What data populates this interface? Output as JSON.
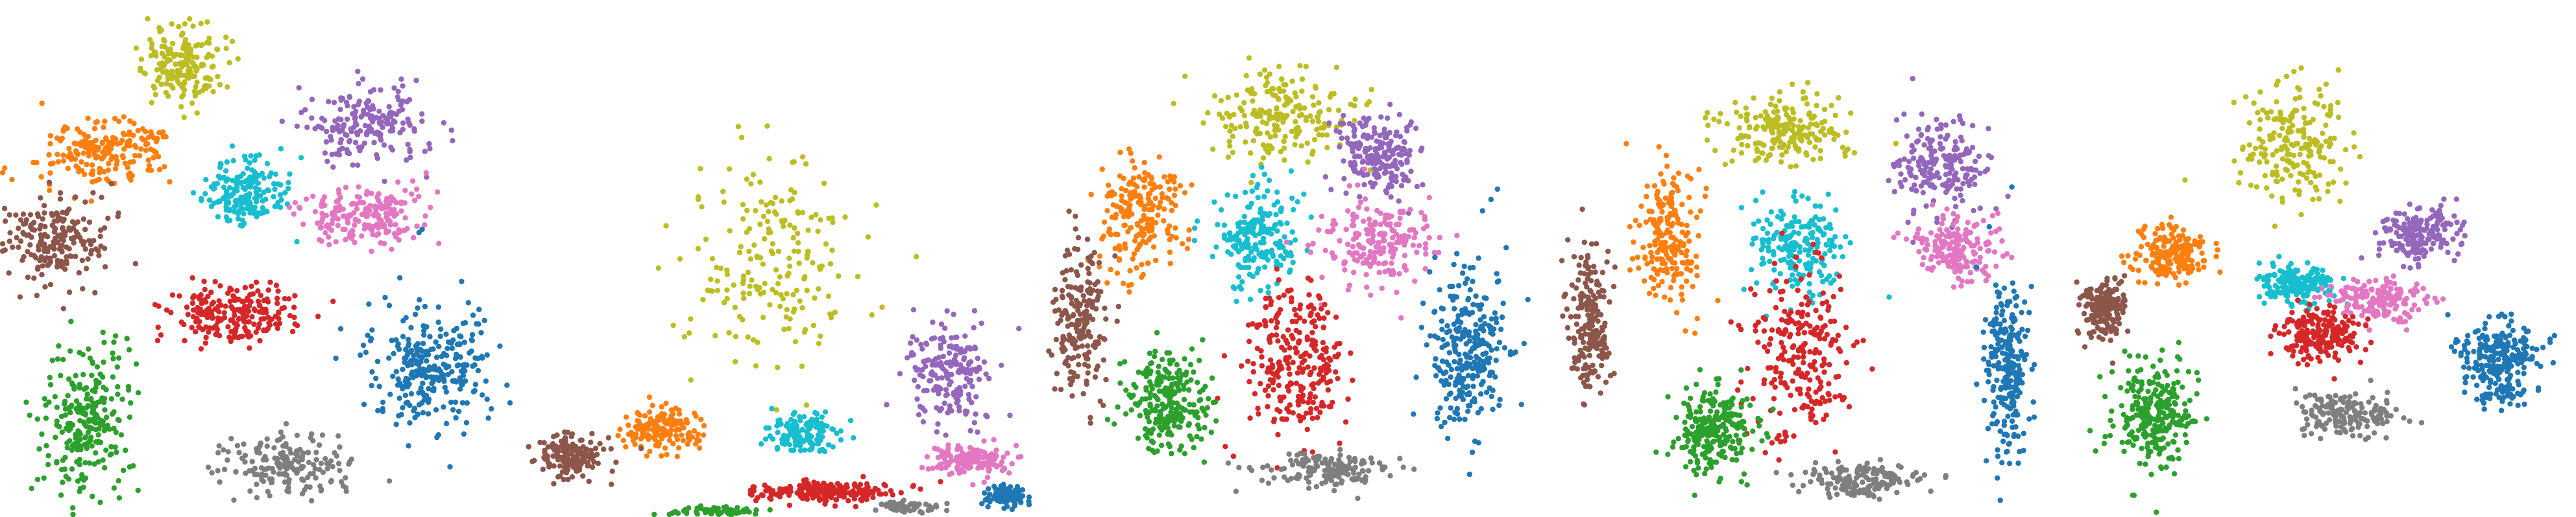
{
  "chart_data": [
    {
      "type": "scatter",
      "description_kind": "cluster embedding",
      "clusters": [
        {
          "color": "#bcbd22",
          "cx": 0.36,
          "cy": 0.12,
          "sx": 0.08,
          "sy": 0.08,
          "n": 180
        },
        {
          "color": "#ff7f0e",
          "cx": 0.2,
          "cy": 0.29,
          "sx": 0.12,
          "sy": 0.06,
          "n": 200
        },
        {
          "color": "#17becf",
          "cx": 0.48,
          "cy": 0.37,
          "sx": 0.08,
          "sy": 0.07,
          "n": 180
        },
        {
          "color": "#9467bd",
          "cx": 0.71,
          "cy": 0.24,
          "sx": 0.11,
          "sy": 0.07,
          "n": 200
        },
        {
          "color": "#e377c2",
          "cx": 0.72,
          "cy": 0.42,
          "sx": 0.11,
          "sy": 0.06,
          "n": 200
        },
        {
          "color": "#8c564b",
          "cx": 0.11,
          "cy": 0.47,
          "sx": 0.1,
          "sy": 0.09,
          "n": 200
        },
        {
          "color": "#d62728",
          "cx": 0.45,
          "cy": 0.61,
          "sx": 0.12,
          "sy": 0.06,
          "n": 220
        },
        {
          "color": "#1f77b4",
          "cx": 0.84,
          "cy": 0.71,
          "sx": 0.12,
          "sy": 0.13,
          "n": 280
        },
        {
          "color": "#2ca02c",
          "cx": 0.17,
          "cy": 0.82,
          "sx": 0.08,
          "sy": 0.14,
          "n": 250
        },
        {
          "color": "#7f7f7f",
          "cx": 0.56,
          "cy": 0.9,
          "sx": 0.12,
          "sy": 0.06,
          "n": 180
        }
      ]
    },
    {
      "type": "scatter",
      "description_kind": "cluster embedding",
      "clusters": [
        {
          "color": "#bcbd22",
          "cx": 0.5,
          "cy": 0.5,
          "sx": 0.18,
          "sy": 0.2,
          "n": 200
        },
        {
          "color": "#ff7f0e",
          "cx": 0.28,
          "cy": 0.83,
          "sx": 0.08,
          "sy": 0.04,
          "n": 160
        },
        {
          "color": "#17becf",
          "cx": 0.55,
          "cy": 0.84,
          "sx": 0.07,
          "sy": 0.04,
          "n": 140
        },
        {
          "color": "#9467bd",
          "cx": 0.84,
          "cy": 0.72,
          "sx": 0.08,
          "sy": 0.09,
          "n": 200
        },
        {
          "color": "#e377c2",
          "cx": 0.88,
          "cy": 0.89,
          "sx": 0.07,
          "sy": 0.03,
          "n": 160
        },
        {
          "color": "#8c564b",
          "cx": 0.1,
          "cy": 0.88,
          "sx": 0.07,
          "sy": 0.04,
          "n": 160
        },
        {
          "color": "#d62728",
          "cx": 0.6,
          "cy": 0.95,
          "sx": 0.13,
          "sy": 0.02,
          "n": 200
        },
        {
          "color": "#1f77b4",
          "cx": 0.95,
          "cy": 0.96,
          "sx": 0.04,
          "sy": 0.02,
          "n": 120
        },
        {
          "color": "#2ca02c",
          "cx": 0.38,
          "cy": 0.99,
          "sx": 0.1,
          "sy": 0.01,
          "n": 60
        },
        {
          "color": "#7f7f7f",
          "cx": 0.75,
          "cy": 0.98,
          "sx": 0.06,
          "sy": 0.01,
          "n": 60
        }
      ]
    },
    {
      "type": "scatter",
      "description_kind": "cluster embedding",
      "clusters": [
        {
          "color": "#bcbd22",
          "cx": 0.48,
          "cy": 0.22,
          "sx": 0.14,
          "sy": 0.09,
          "n": 200
        },
        {
          "color": "#ff7f0e",
          "cx": 0.2,
          "cy": 0.42,
          "sx": 0.08,
          "sy": 0.12,
          "n": 200
        },
        {
          "color": "#17becf",
          "cx": 0.43,
          "cy": 0.46,
          "sx": 0.08,
          "sy": 0.1,
          "n": 200
        },
        {
          "color": "#9467bd",
          "cx": 0.66,
          "cy": 0.3,
          "sx": 0.08,
          "sy": 0.08,
          "n": 200
        },
        {
          "color": "#e377c2",
          "cx": 0.66,
          "cy": 0.47,
          "sx": 0.12,
          "sy": 0.08,
          "n": 200
        },
        {
          "color": "#8c564b",
          "cx": 0.08,
          "cy": 0.62,
          "sx": 0.05,
          "sy": 0.14,
          "n": 200
        },
        {
          "color": "#d62728",
          "cx": 0.5,
          "cy": 0.7,
          "sx": 0.1,
          "sy": 0.15,
          "n": 260
        },
        {
          "color": "#1f77b4",
          "cx": 0.84,
          "cy": 0.68,
          "sx": 0.08,
          "sy": 0.17,
          "n": 280
        },
        {
          "color": "#2ca02c",
          "cx": 0.25,
          "cy": 0.78,
          "sx": 0.08,
          "sy": 0.1,
          "n": 240
        },
        {
          "color": "#7f7f7f",
          "cx": 0.57,
          "cy": 0.91,
          "sx": 0.12,
          "sy": 0.03,
          "n": 160
        }
      ]
    },
    {
      "type": "scatter",
      "description_kind": "cluster embedding",
      "clusters": [
        {
          "color": "#bcbd22",
          "cx": 0.47,
          "cy": 0.25,
          "sx": 0.14,
          "sy": 0.07,
          "n": 200
        },
        {
          "color": "#ff7f0e",
          "cx": 0.24,
          "cy": 0.46,
          "sx": 0.06,
          "sy": 0.14,
          "n": 200
        },
        {
          "color": "#17becf",
          "cx": 0.48,
          "cy": 0.48,
          "sx": 0.1,
          "sy": 0.09,
          "n": 200
        },
        {
          "color": "#9467bd",
          "cx": 0.77,
          "cy": 0.32,
          "sx": 0.09,
          "sy": 0.1,
          "n": 200
        },
        {
          "color": "#e377c2",
          "cx": 0.8,
          "cy": 0.48,
          "sx": 0.08,
          "sy": 0.06,
          "n": 180
        },
        {
          "color": "#8c564b",
          "cx": 0.09,
          "cy": 0.62,
          "sx": 0.04,
          "sy": 0.14,
          "n": 200
        },
        {
          "color": "#d62728",
          "cx": 0.5,
          "cy": 0.68,
          "sx": 0.09,
          "sy": 0.18,
          "n": 240
        },
        {
          "color": "#1f77b4",
          "cx": 0.9,
          "cy": 0.72,
          "sx": 0.04,
          "sy": 0.16,
          "n": 240
        },
        {
          "color": "#2ca02c",
          "cx": 0.33,
          "cy": 0.83,
          "sx": 0.08,
          "sy": 0.08,
          "n": 240
        },
        {
          "color": "#7f7f7f",
          "cx": 0.62,
          "cy": 0.93,
          "sx": 0.12,
          "sy": 0.03,
          "n": 160
        }
      ]
    },
    {
      "type": "scatter",
      "description_kind": "cluster embedding",
      "clusters": [
        {
          "color": "#bcbd22",
          "cx": 0.46,
          "cy": 0.28,
          "sx": 0.1,
          "sy": 0.12,
          "n": 200
        },
        {
          "color": "#ff7f0e",
          "cx": 0.22,
          "cy": 0.49,
          "sx": 0.07,
          "sy": 0.05,
          "n": 180
        },
        {
          "color": "#17becf",
          "cx": 0.46,
          "cy": 0.55,
          "sx": 0.07,
          "sy": 0.04,
          "n": 180
        },
        {
          "color": "#9467bd",
          "cx": 0.7,
          "cy": 0.45,
          "sx": 0.08,
          "sy": 0.05,
          "n": 180
        },
        {
          "color": "#e377c2",
          "cx": 0.62,
          "cy": 0.58,
          "sx": 0.1,
          "sy": 0.04,
          "n": 180
        },
        {
          "color": "#8c564b",
          "cx": 0.09,
          "cy": 0.6,
          "sx": 0.04,
          "sy": 0.06,
          "n": 180
        },
        {
          "color": "#d62728",
          "cx": 0.5,
          "cy": 0.65,
          "sx": 0.08,
          "sy": 0.05,
          "n": 200
        },
        {
          "color": "#1f77b4",
          "cx": 0.85,
          "cy": 0.7,
          "sx": 0.08,
          "sy": 0.08,
          "n": 260
        },
        {
          "color": "#2ca02c",
          "cx": 0.19,
          "cy": 0.8,
          "sx": 0.08,
          "sy": 0.1,
          "n": 260
        },
        {
          "color": "#7f7f7f",
          "cx": 0.56,
          "cy": 0.8,
          "sx": 0.09,
          "sy": 0.04,
          "n": 160
        }
      ]
    }
  ]
}
